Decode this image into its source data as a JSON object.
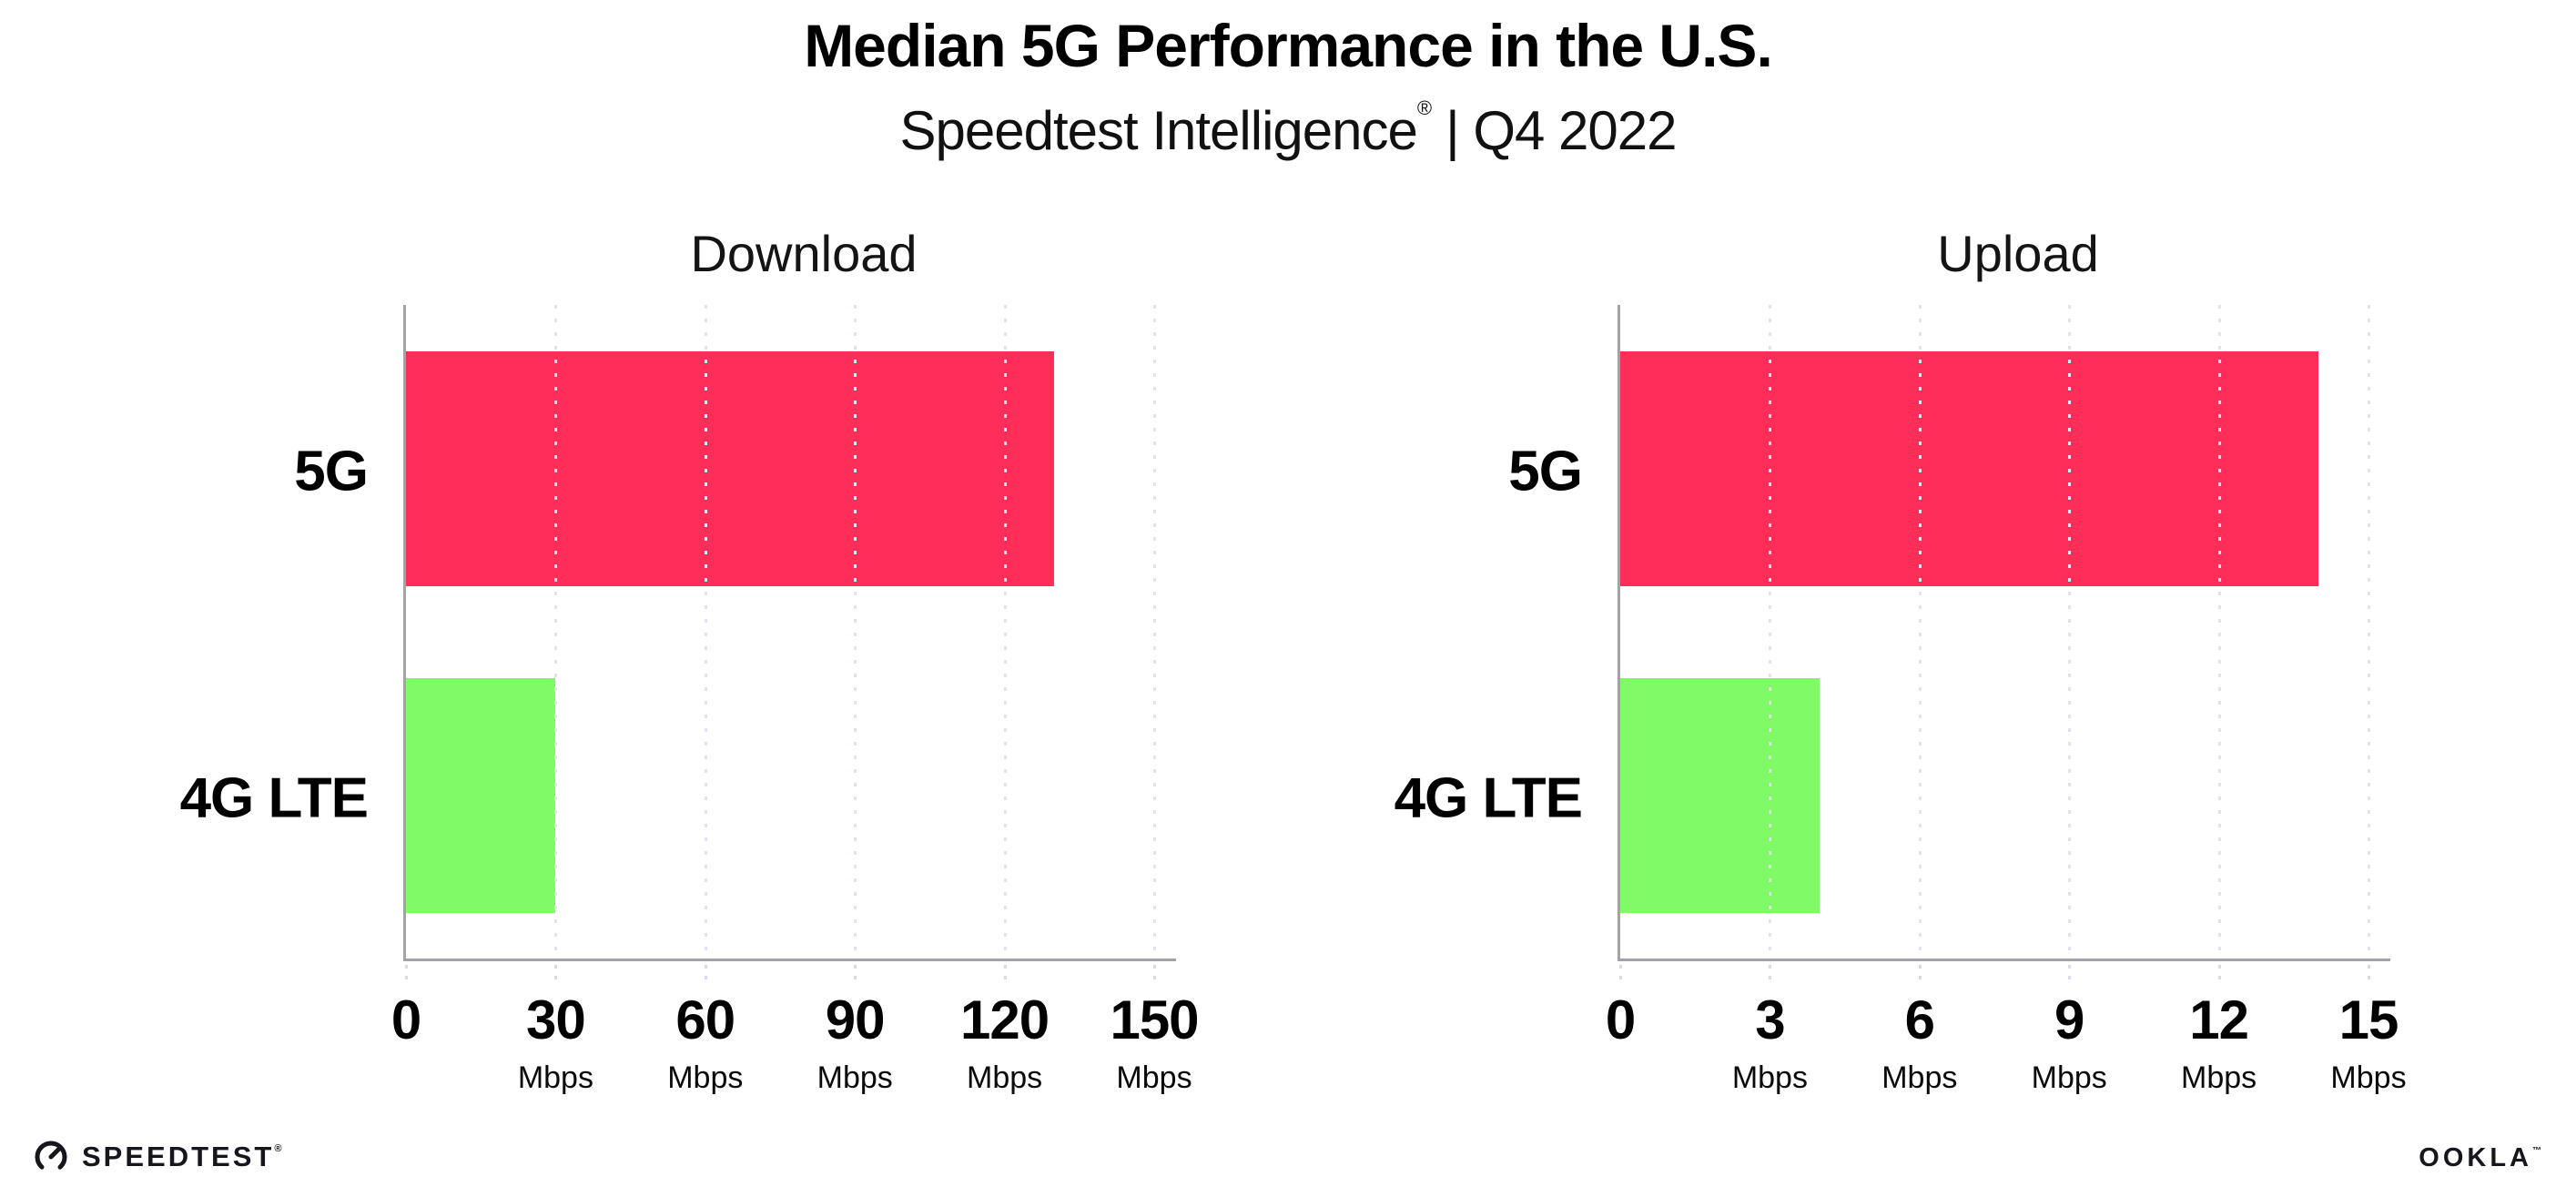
{
  "header": {
    "title": "Median 5G Performance in the U.S.",
    "subtitle_brand": "Speedtest Intelligence",
    "subtitle_reg": "®",
    "subtitle_rest": "| Q4 2022"
  },
  "colors": {
    "bar_5g": "#ff2e58",
    "bar_4g_lte": "#80fa66",
    "gridline": "#e3e3ef",
    "axis": "#a2a2a8",
    "text": "#000000"
  },
  "chart_data": [
    {
      "type": "bar",
      "orientation": "horizontal",
      "title": "Download",
      "categories": [
        "5G",
        "4G LTE"
      ],
      "values": [
        130,
        30
      ],
      "unit": "Mbps",
      "xlabel": "",
      "ylabel": "",
      "xlim": [
        0,
        150
      ],
      "xticks": [
        0,
        30,
        60,
        90,
        120,
        150
      ],
      "colors": [
        "#ff2e58",
        "#80fa66"
      ],
      "grid": "dotted-vertical",
      "legend": "none"
    },
    {
      "type": "bar",
      "orientation": "horizontal",
      "title": "Upload",
      "categories": [
        "5G",
        "4G LTE"
      ],
      "values": [
        14,
        4
      ],
      "unit": "Mbps",
      "xlabel": "",
      "ylabel": "",
      "xlim": [
        0,
        15
      ],
      "xticks": [
        0,
        3,
        6,
        9,
        12,
        15
      ],
      "colors": [
        "#ff2e58",
        "#80fa66"
      ],
      "grid": "dotted-vertical",
      "legend": "none"
    }
  ],
  "footer": {
    "speedtest_label": "SPEEDTEST",
    "speedtest_mark": "®",
    "ookla_label": "OOKLA",
    "ookla_mark": "™"
  }
}
